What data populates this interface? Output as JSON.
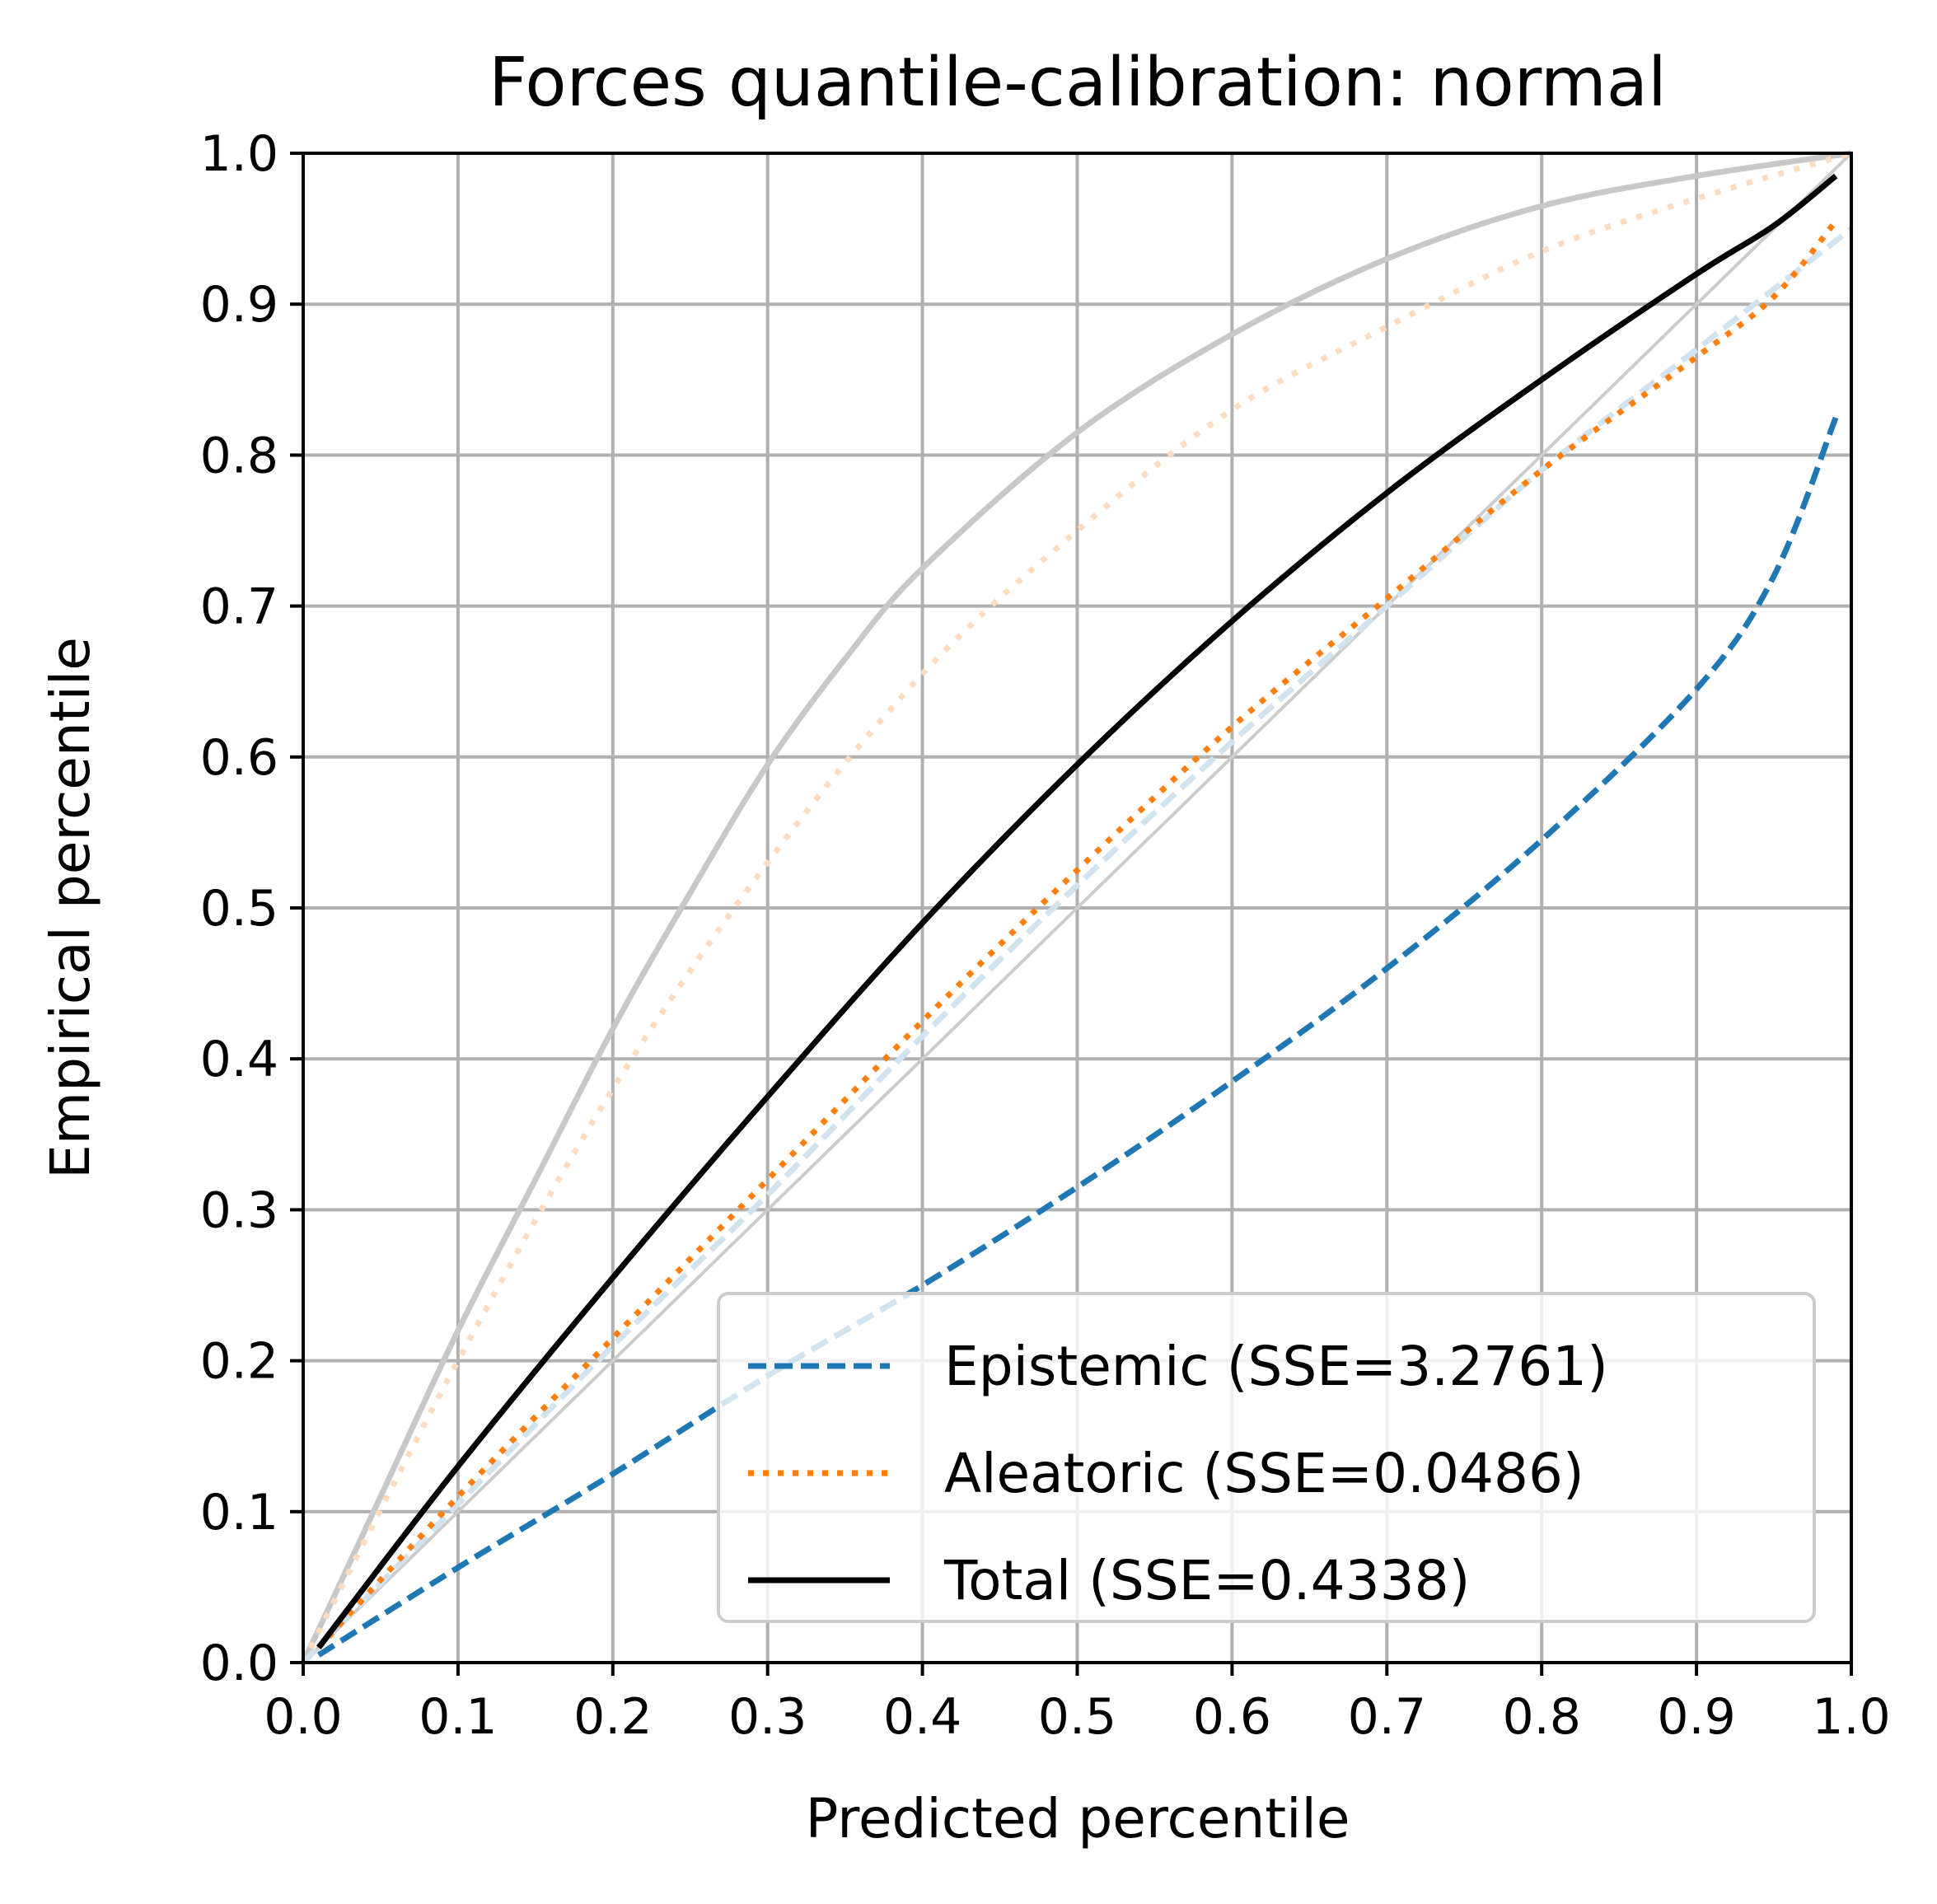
{
  "chart_data": {
    "type": "line",
    "title": "Forces quantile-calibration: normal",
    "xlabel": "Predicted percentile",
    "ylabel": "Empirical percentile",
    "xlim": [
      0.0,
      1.0
    ],
    "ylim": [
      0.0,
      1.0
    ],
    "grid": true,
    "legend_position": "lower-right",
    "xticks": [
      "0.0",
      "0.1",
      "0.2",
      "0.3",
      "0.4",
      "0.5",
      "0.6",
      "0.7",
      "0.8",
      "0.9",
      "1.0"
    ],
    "yticks": [
      "0.0",
      "0.1",
      "0.2",
      "0.3",
      "0.4",
      "0.5",
      "0.6",
      "0.7",
      "0.8",
      "0.9",
      "1.0"
    ],
    "series": [
      {
        "name": "Epistemic (SSE=3.2761)",
        "style": "dashed",
        "color": "#1f77b4",
        "x": [
          0.01,
          0.1,
          0.2,
          0.3,
          0.4,
          0.5,
          0.6,
          0.7,
          0.8,
          0.9,
          0.95,
          0.99
        ],
        "y": [
          0.005,
          0.063,
          0.125,
          0.19,
          0.25,
          0.315,
          0.385,
          0.46,
          0.545,
          0.645,
          0.72,
          0.825
        ]
      },
      {
        "name": "Aleatoric (SSE=0.0486)",
        "style": "dotted",
        "color": "#ff7f0e",
        "x": [
          0.01,
          0.1,
          0.2,
          0.3,
          0.4,
          0.5,
          0.6,
          0.7,
          0.8,
          0.9,
          0.95,
          0.99
        ],
        "y": [
          0.01,
          0.11,
          0.215,
          0.32,
          0.425,
          0.525,
          0.62,
          0.705,
          0.79,
          0.865,
          0.905,
          0.955
        ]
      },
      {
        "name": "Total (SSE=0.4338)",
        "style": "solid",
        "color": "#000000",
        "x": [
          0.01,
          0.1,
          0.2,
          0.3,
          0.4,
          0.5,
          0.6,
          0.7,
          0.8,
          0.9,
          0.95,
          0.99
        ],
        "y": [
          0.01,
          0.13,
          0.255,
          0.375,
          0.49,
          0.595,
          0.69,
          0.775,
          0.85,
          0.92,
          0.952,
          0.985
        ]
      }
    ],
    "reference_curves": [
      {
        "kind": "diagonal",
        "color": "#cccccc",
        "x": [
          0.0,
          1.0
        ],
        "y": [
          0.0,
          1.0
        ]
      },
      {
        "kind": "grey-upper",
        "color": "#c8c8c8",
        "x": [
          0.0,
          0.05,
          0.1,
          0.15,
          0.2,
          0.25,
          0.3,
          0.35,
          0.4,
          0.5,
          0.6,
          0.7,
          0.8,
          0.9,
          1.0
        ],
        "y": [
          0.0,
          0.11,
          0.22,
          0.32,
          0.42,
          0.51,
          0.595,
          0.665,
          0.725,
          0.815,
          0.88,
          0.93,
          0.965,
          0.985,
          1.0
        ]
      },
      {
        "kind": "faint-dotted",
        "color": "#ffdcc0",
        "x": [
          0.0,
          0.1,
          0.2,
          0.3,
          0.4,
          0.5,
          0.6,
          0.7,
          0.8,
          0.9,
          1.0
        ],
        "y": [
          0.0,
          0.2,
          0.38,
          0.53,
          0.655,
          0.75,
          0.83,
          0.885,
          0.935,
          0.97,
          1.0
        ]
      },
      {
        "kind": "faint-dashed",
        "color": "#d2e3f0",
        "x": [
          0.0,
          0.1,
          0.2,
          0.3,
          0.4,
          0.5,
          0.6,
          0.7,
          0.8,
          0.9,
          1.0
        ],
        "y": [
          0.0,
          0.105,
          0.21,
          0.31,
          0.415,
          0.515,
          0.61,
          0.7,
          0.79,
          0.87,
          0.95
        ]
      }
    ]
  }
}
